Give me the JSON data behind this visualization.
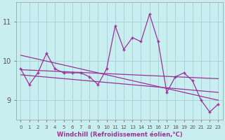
{
  "xlabel": "Windchill (Refroidissement éolien,°C)",
  "bg_color": "#c8eef0",
  "grid_color": "#aad4d8",
  "line_color": "#993399",
  "x": [
    0,
    1,
    2,
    3,
    4,
    5,
    6,
    7,
    8,
    9,
    10,
    11,
    12,
    13,
    14,
    15,
    16,
    17,
    18,
    19,
    20,
    21,
    22,
    23
  ],
  "line1": [
    9.8,
    9.4,
    9.7,
    10.2,
    9.8,
    9.7,
    9.7,
    9.7,
    9.6,
    9.4,
    9.8,
    10.9,
    10.3,
    10.6,
    10.5,
    11.2,
    10.5,
    9.2,
    9.6,
    9.7,
    9.5,
    9.0,
    8.7,
    8.9
  ],
  "trend1_start": 10.15,
  "trend1_end": 9.0,
  "trend2_start": 9.78,
  "trend2_end": 9.55,
  "trend3_start": 9.65,
  "trend3_end": 9.2,
  "ylim": [
    8.5,
    11.5
  ],
  "yticks": [
    9,
    10,
    11
  ],
  "xticks": [
    0,
    1,
    2,
    3,
    4,
    5,
    6,
    7,
    8,
    9,
    10,
    11,
    12,
    13,
    14,
    15,
    16,
    17,
    18,
    19,
    20,
    21,
    22,
    23
  ]
}
